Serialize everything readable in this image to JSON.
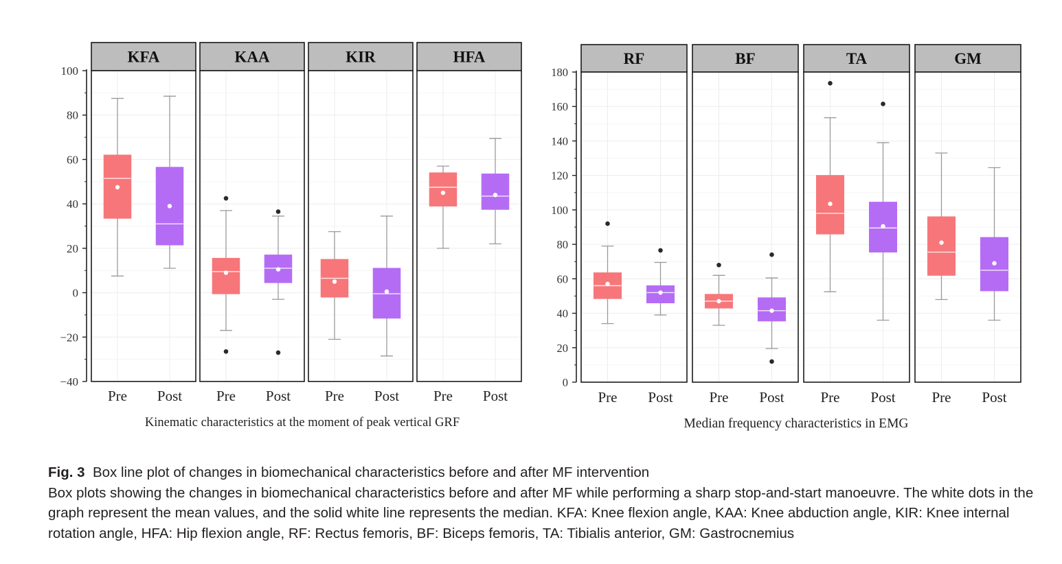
{
  "chart_data": [
    {
      "type": "box",
      "xlabel": "Kinematic characteristics at the moment of peak vertical GRF",
      "ylim": [
        -40,
        100
      ],
      "yticks": [
        -40,
        -20,
        0,
        20,
        40,
        60,
        80,
        100
      ],
      "grid": true,
      "categories": [
        "Pre",
        "Post"
      ],
      "colors": {
        "Pre": "#f7767a",
        "Post": "#b56cf5"
      },
      "panels": [
        {
          "name": "KFA",
          "boxes": [
            {
              "group": "Pre",
              "whisker_low": 7.5,
              "q1": 33.5,
              "median": 51.5,
              "q3": 62,
              "whisker_high": 87.5,
              "mean": 47.5,
              "outliers": []
            },
            {
              "group": "Post",
              "whisker_low": 11,
              "q1": 21.5,
              "median": 31,
              "q3": 56.5,
              "whisker_high": 88.5,
              "mean": 39,
              "outliers": []
            }
          ]
        },
        {
          "name": "KAA",
          "boxes": [
            {
              "group": "Pre",
              "whisker_low": -17,
              "q1": -0.5,
              "median": 9.5,
              "q3": 15.5,
              "whisker_high": 37,
              "mean": 9,
              "outliers": [
                42.5,
                -26.5
              ]
            },
            {
              "group": "Post",
              "whisker_low": -3,
              "q1": 4.5,
              "median": 11,
              "q3": 17,
              "whisker_high": 34.5,
              "mean": 10.5,
              "outliers": [
                36.5,
                -27
              ]
            }
          ]
        },
        {
          "name": "KIR",
          "boxes": [
            {
              "group": "Pre",
              "whisker_low": -21,
              "q1": -2,
              "median": 6.5,
              "q3": 15,
              "whisker_high": 27.5,
              "mean": 5,
              "outliers": []
            },
            {
              "group": "Post",
              "whisker_low": -28.5,
              "q1": -11.5,
              "median": -0.5,
              "q3": 11,
              "whisker_high": 34.5,
              "mean": 0.5,
              "outliers": []
            }
          ]
        },
        {
          "name": "HFA",
          "boxes": [
            {
              "group": "Pre",
              "whisker_low": 20,
              "q1": 39,
              "median": 47.5,
              "q3": 54,
              "whisker_high": 57,
              "mean": 45,
              "outliers": []
            },
            {
              "group": "Post",
              "whisker_low": 22,
              "q1": 37.5,
              "median": 43.5,
              "q3": 53.5,
              "whisker_high": 69.5,
              "mean": 44,
              "outliers": []
            }
          ]
        }
      ]
    },
    {
      "type": "box",
      "xlabel": "Median frequency characteristics in EMG",
      "ylim": [
        0,
        180
      ],
      "yticks": [
        0,
        20,
        40,
        60,
        80,
        100,
        120,
        140,
        160,
        180
      ],
      "grid": true,
      "categories": [
        "Pre",
        "Post"
      ],
      "colors": {
        "Pre": "#f7767a",
        "Post": "#b56cf5"
      },
      "panels": [
        {
          "name": "RF",
          "boxes": [
            {
              "group": "Pre",
              "whisker_low": 34,
              "q1": 48.5,
              "median": 56,
              "q3": 63.5,
              "whisker_high": 79,
              "mean": 57,
              "outliers": [
                92
              ]
            },
            {
              "group": "Post",
              "whisker_low": 39,
              "q1": 46,
              "median": 52,
              "q3": 56,
              "whisker_high": 69.5,
              "mean": 52,
              "outliers": [
                76.5
              ]
            }
          ]
        },
        {
          "name": "BF",
          "boxes": [
            {
              "group": "Pre",
              "whisker_low": 33,
              "q1": 43,
              "median": 47,
              "q3": 51,
              "whisker_high": 62,
              "mean": 47,
              "outliers": [
                68
              ]
            },
            {
              "group": "Post",
              "whisker_low": 19.5,
              "q1": 35.5,
              "median": 41.5,
              "q3": 49,
              "whisker_high": 60.5,
              "mean": 41.5,
              "outliers": [
                74,
                12
              ]
            }
          ]
        },
        {
          "name": "TA",
          "boxes": [
            {
              "group": "Pre",
              "whisker_low": 52.5,
              "q1": 86,
              "median": 98,
              "q3": 120,
              "whisker_high": 153.5,
              "mean": 103.5,
              "outliers": [
                173.5
              ]
            },
            {
              "group": "Post",
              "whisker_low": 36,
              "q1": 75.5,
              "median": 89.5,
              "q3": 104.5,
              "whisker_high": 139,
              "mean": 90.5,
              "outliers": [
                161.5
              ]
            }
          ]
        },
        {
          "name": "GM",
          "boxes": [
            {
              "group": "Pre",
              "whisker_low": 48,
              "q1": 62,
              "median": 75.5,
              "q3": 96,
              "whisker_high": 133,
              "mean": 81,
              "outliers": []
            },
            {
              "group": "Post",
              "whisker_low": 36,
              "q1": 53,
              "median": 65,
              "q3": 84,
              "whisker_high": 124.5,
              "mean": 69,
              "outliers": []
            }
          ]
        }
      ]
    }
  ],
  "caption": {
    "figure_label": "Fig. 3",
    "title": "Box line plot of changes in biomechanical characteristics before and after MF intervention",
    "body": "Box plots showing the changes in biomechanical characteristics before and after MF while performing a sharp stop-and-start manoeuvre. The white dots in the graph represent the mean values, and the solid white line represents the median. KFA: Knee flexion angle, KAA: Knee abduction angle, KIR: Knee internal rotation angle, HFA: Hip flexion angle, RF: Rectus femoris, BF: Biceps femoris, TA: Tibialis anterior, GM: Gastrocnemius"
  }
}
